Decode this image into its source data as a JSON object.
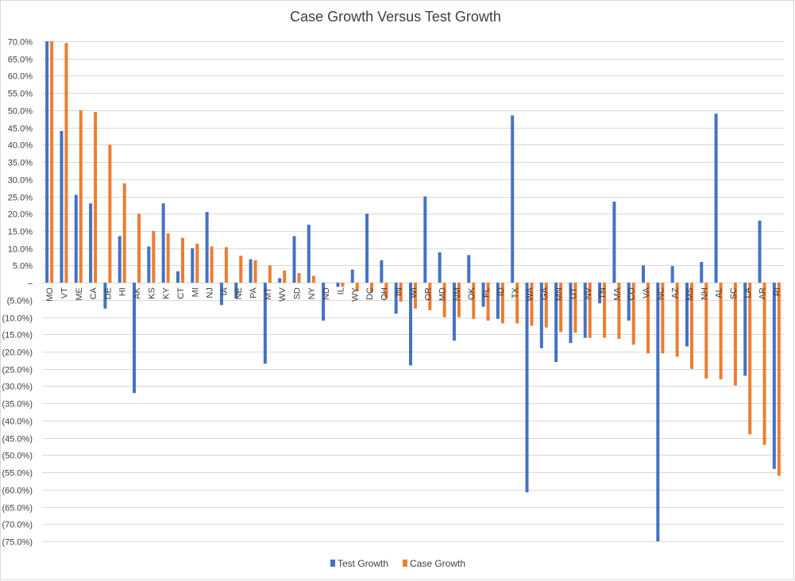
{
  "chart_data": {
    "type": "bar",
    "title": "Case Growth Versus Test Growth",
    "xlabel": "",
    "ylabel": "",
    "ylim": [
      -75,
      70
    ],
    "y_ticks": [
      "70.0%",
      "65.0%",
      "60.0%",
      "55.0%",
      "50.0%",
      "45.0%",
      "40.0%",
      "35.0%",
      "30.0%",
      "25.0%",
      "20.0%",
      "15.0%",
      "10.0%",
      "5.0%",
      "–",
      "(5.0%)",
      "(10.0%)",
      "(15.0%)",
      "(20.0%)",
      "(25.0%)",
      "(30.0%)",
      "(35.0%)",
      "(40.0%)",
      "(45.0%)",
      "(50.0%)",
      "(55.0%)",
      "(60.0%)",
      "(65.0%)",
      "(70.0%)",
      "(75.0%)"
    ],
    "y_tick_values": [
      70,
      65,
      60,
      55,
      50,
      45,
      40,
      35,
      30,
      25,
      20,
      15,
      10,
      5,
      0,
      -5,
      -10,
      -15,
      -20,
      -25,
      -30,
      -35,
      -40,
      -45,
      -50,
      -55,
      -60,
      -65,
      -70,
      -75
    ],
    "grid": true,
    "legend_position": "bottom",
    "categories": [
      "MO",
      "VT",
      "ME",
      "CA",
      "DE",
      "HI",
      "AK",
      "KS",
      "KY",
      "CT",
      "MI",
      "NJ",
      "IA",
      "NE",
      "PA",
      "MT",
      "WV",
      "SD",
      "NY",
      "ND",
      "IL",
      "WY",
      "DC",
      "OH",
      "IN",
      "WI",
      "OR",
      "MD",
      "NM",
      "OK",
      "FL",
      "ID",
      "TX",
      "WA",
      "GA",
      "MN",
      "UT",
      "NV",
      "TN",
      "MA",
      "CO",
      "VA",
      "NC",
      "AZ",
      "MS",
      "NH",
      "AL",
      "SC",
      "LA",
      "AR",
      "RI"
    ],
    "series": [
      {
        "name": "Test Growth",
        "color": "#4472c4",
        "values": [
          70.0,
          44.0,
          25.5,
          23.0,
          -7.5,
          13.5,
          -32.0,
          10.5,
          23.0,
          3.3,
          10.0,
          20.5,
          -6.5,
          -4.5,
          6.8,
          -23.5,
          1.3,
          13.5,
          16.8,
          -11.0,
          -1.2,
          3.8,
          20.0,
          6.5,
          -9.0,
          -24.0,
          25.0,
          8.8,
          -16.8,
          8.0,
          -7.0,
          -10.5,
          48.5,
          -60.8,
          -19.0,
          -23.0,
          -17.5,
          -16.0,
          -6.0,
          23.5,
          -11.0,
          5.0,
          -75.0,
          4.8,
          -18.5,
          6.0,
          49.0,
          0.0,
          -27.0,
          18.0,
          -54.0
        ]
      },
      {
        "name": "Case Growth",
        "color": "#ed7d31",
        "values": [
          70.0,
          69.5,
          50.0,
          49.5,
          40.0,
          28.8,
          20.0,
          15.0,
          14.3,
          13.0,
          11.3,
          10.5,
          10.3,
          7.8,
          6.5,
          5.0,
          3.5,
          2.8,
          2.0,
          0.0,
          -1.2,
          -2.5,
          -2.8,
          -4.5,
          -5.5,
          -7.5,
          -8.0,
          -10.0,
          -10.0,
          -10.5,
          -11.0,
          -11.8,
          -11.8,
          -12.5,
          -13.0,
          -14.3,
          -14.5,
          -16.0,
          -16.0,
          -16.3,
          -18.0,
          -20.5,
          -20.5,
          -21.5,
          -25.0,
          -27.8,
          -28.0,
          -29.8,
          -44.0,
          -47.0,
          -56.0
        ]
      }
    ]
  }
}
